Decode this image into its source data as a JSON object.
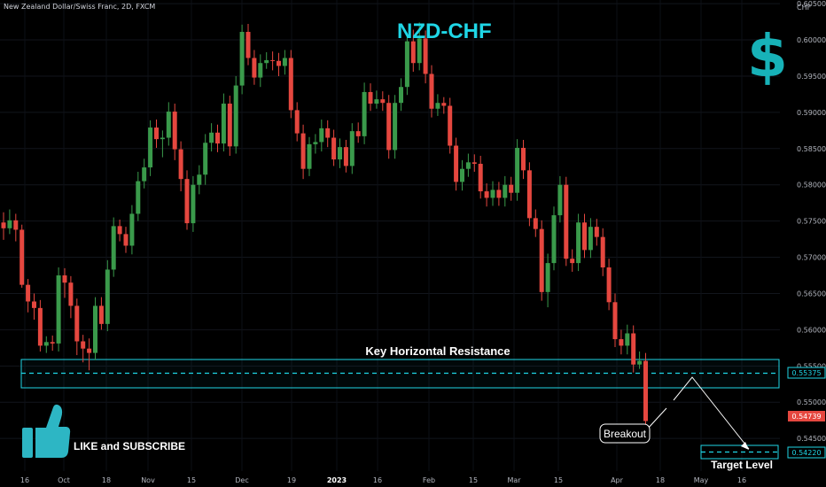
{
  "header": {
    "symbol": "New Zealand Dollar/Swiss Franc, 2D, FXCM",
    "currency_label": "CHF"
  },
  "title": "NZD-CHF",
  "cta": "LIKE and SUBSCRIBE",
  "colors": {
    "up": "#3a9a4b",
    "down": "#e5473f",
    "accent": "#1fd6e6",
    "background": "#000000",
    "white": "#ffffff"
  },
  "icons": [
    "dollar-sign-icon",
    "thumbs-up-icon"
  ],
  "annotations": {
    "resistance": "Key Horizontal Resistance",
    "breakout": "Breakout",
    "target": "Target Level"
  },
  "price_tags": {
    "resistance": "0.55375",
    "current": "0.54739",
    "target": "0.54220"
  },
  "chart_data": {
    "type": "candlestick",
    "title": "NZD-CHF",
    "ylim": [
      0.5405,
      0.6055
    ],
    "y_ticks": [
      "0.60500",
      "0.60000",
      "0.59500",
      "0.59000",
      "0.58500",
      "0.58000",
      "0.57500",
      "0.57000",
      "0.56500",
      "0.56000",
      "0.55500",
      "0.55000",
      "0.54500"
    ],
    "x_ticks": [
      "16",
      "Oct",
      "18",
      "Nov",
      "15",
      "Dec",
      "19",
      "2023",
      "16",
      "Feb",
      "15",
      "Mar",
      "15",
      "Apr",
      "18",
      "May",
      "16"
    ],
    "resistance_zone": [
      0.5514,
      0.5555
    ],
    "resistance_level": 0.55375,
    "target_level": 0.5422,
    "candles": [
      [
        0.5748,
        0.574,
        0.5762,
        0.5724
      ],
      [
        0.574,
        0.5751,
        0.5766,
        0.5732
      ],
      [
        0.5751,
        0.5738,
        0.576,
        0.5722
      ],
      [
        0.5738,
        0.5662,
        0.5745,
        0.5658
      ],
      [
        0.5662,
        0.5639,
        0.567,
        0.5624
      ],
      [
        0.5639,
        0.563,
        0.565,
        0.5614
      ],
      [
        0.563,
        0.5578,
        0.5641,
        0.557
      ],
      [
        0.5578,
        0.5583,
        0.5591,
        0.5568
      ],
      [
        0.5583,
        0.5581,
        0.5592,
        0.5571
      ],
      [
        0.5581,
        0.5675,
        0.5686,
        0.557
      ],
      [
        0.5675,
        0.5665,
        0.5685,
        0.5644
      ],
      [
        0.5665,
        0.5633,
        0.5674,
        0.5616
      ],
      [
        0.5633,
        0.5584,
        0.5643,
        0.5565
      ],
      [
        0.5584,
        0.5574,
        0.5593,
        0.5555
      ],
      [
        0.5574,
        0.5568,
        0.5588,
        0.5544
      ],
      [
        0.5568,
        0.5633,
        0.5645,
        0.5558
      ],
      [
        0.5633,
        0.5608,
        0.5645,
        0.56
      ],
      [
        0.5608,
        0.5683,
        0.5696,
        0.5598
      ],
      [
        0.5683,
        0.5743,
        0.5755,
        0.5673
      ],
      [
        0.5743,
        0.5732,
        0.5752,
        0.5722
      ],
      [
        0.5732,
        0.5716,
        0.5742,
        0.5706
      ],
      [
        0.5716,
        0.576,
        0.5772,
        0.5704
      ],
      [
        0.576,
        0.5805,
        0.5818,
        0.575
      ],
      [
        0.5805,
        0.5824,
        0.5836,
        0.5795
      ],
      [
        0.5824,
        0.5879,
        0.5889,
        0.5812
      ],
      [
        0.5879,
        0.5863,
        0.589,
        0.5851
      ],
      [
        0.5863,
        0.5865,
        0.5875,
        0.5838
      ],
      [
        0.5865,
        0.5901,
        0.5914,
        0.5854
      ],
      [
        0.5901,
        0.5849,
        0.5912,
        0.5834
      ],
      [
        0.5849,
        0.5808,
        0.586,
        0.5791
      ],
      [
        0.5808,
        0.5747,
        0.582,
        0.5738
      ],
      [
        0.5747,
        0.58,
        0.5812,
        0.5735
      ],
      [
        0.58,
        0.5814,
        0.5827,
        0.5787
      ],
      [
        0.5814,
        0.5858,
        0.587,
        0.58
      ],
      [
        0.5858,
        0.5872,
        0.5885,
        0.5846
      ],
      [
        0.5872,
        0.5857,
        0.5883,
        0.5845
      ],
      [
        0.5857,
        0.5912,
        0.5926,
        0.5846
      ],
      [
        0.5912,
        0.5853,
        0.5923,
        0.584
      ],
      [
        0.5853,
        0.5937,
        0.595,
        0.5843
      ],
      [
        0.5937,
        0.6011,
        0.6021,
        0.5925
      ],
      [
        0.6011,
        0.5975,
        0.6022,
        0.5965
      ],
      [
        0.5975,
        0.5948,
        0.5986,
        0.5938
      ],
      [
        0.5948,
        0.5968,
        0.598,
        0.5935
      ],
      [
        0.5968,
        0.5972,
        0.5983,
        0.596
      ],
      [
        0.5972,
        0.5971,
        0.5984,
        0.5958
      ],
      [
        0.5971,
        0.5964,
        0.5982,
        0.595
      ],
      [
        0.5964,
        0.5975,
        0.5986,
        0.5952
      ],
      [
        0.5975,
        0.5903,
        0.5986,
        0.5892
      ],
      [
        0.5903,
        0.5871,
        0.5914,
        0.586
      ],
      [
        0.5871,
        0.5822,
        0.5883,
        0.5808
      ],
      [
        0.5822,
        0.5856,
        0.5866,
        0.5812
      ],
      [
        0.5856,
        0.5859,
        0.587,
        0.5843
      ],
      [
        0.5859,
        0.5878,
        0.589,
        0.5846
      ],
      [
        0.5878,
        0.5865,
        0.5889,
        0.5852
      ],
      [
        0.5865,
        0.5835,
        0.5876,
        0.5826
      ],
      [
        0.5835,
        0.5852,
        0.5864,
        0.5823
      ],
      [
        0.5852,
        0.5826,
        0.5862,
        0.5817
      ],
      [
        0.5826,
        0.5874,
        0.5885,
        0.5815
      ],
      [
        0.5874,
        0.5867,
        0.5886,
        0.5858
      ],
      [
        0.5867,
        0.5928,
        0.5941,
        0.5856
      ],
      [
        0.5928,
        0.5912,
        0.594,
        0.5902
      ],
      [
        0.5912,
        0.5918,
        0.593,
        0.5905
      ],
      [
        0.5918,
        0.5913,
        0.5929,
        0.5902
      ],
      [
        0.5913,
        0.5848,
        0.5924,
        0.5836
      ],
      [
        0.5848,
        0.5913,
        0.5924,
        0.5836
      ],
      [
        0.5913,
        0.5935,
        0.5947,
        0.5902
      ],
      [
        0.5935,
        0.5998,
        0.601,
        0.5924
      ],
      [
        0.5998,
        0.5968,
        0.6014,
        0.5956
      ],
      [
        0.5968,
        0.6002,
        0.6024,
        0.5958
      ],
      [
        0.6002,
        0.5953,
        0.6013,
        0.594
      ],
      [
        0.5953,
        0.5905,
        0.5965,
        0.5893
      ],
      [
        0.5905,
        0.5913,
        0.5925,
        0.5895
      ],
      [
        0.5913,
        0.5909,
        0.5921,
        0.5898
      ],
      [
        0.5909,
        0.5854,
        0.592,
        0.5843
      ],
      [
        0.5854,
        0.5804,
        0.5865,
        0.5792
      ],
      [
        0.5804,
        0.5822,
        0.5834,
        0.5792
      ],
      [
        0.5822,
        0.5831,
        0.5843,
        0.5811
      ],
      [
        0.5831,
        0.5829,
        0.5842,
        0.5818
      ],
      [
        0.5829,
        0.5791,
        0.584,
        0.5781
      ],
      [
        0.5791,
        0.5782,
        0.5802,
        0.577
      ],
      [
        0.5782,
        0.5793,
        0.5805,
        0.5771
      ],
      [
        0.5793,
        0.5782,
        0.5804,
        0.5771
      ],
      [
        0.5782,
        0.58,
        0.5812,
        0.577
      ],
      [
        0.58,
        0.5789,
        0.5811,
        0.5778
      ],
      [
        0.5789,
        0.5851,
        0.5863,
        0.5778
      ],
      [
        0.5851,
        0.582,
        0.5862,
        0.5808
      ],
      [
        0.582,
        0.5754,
        0.5831,
        0.5743
      ],
      [
        0.5754,
        0.5739,
        0.5766,
        0.5728
      ],
      [
        0.5739,
        0.5652,
        0.5751,
        0.564
      ],
      [
        0.5652,
        0.5692,
        0.5705,
        0.5631
      ],
      [
        0.5692,
        0.5758,
        0.577,
        0.5682
      ],
      [
        0.5758,
        0.58,
        0.5812,
        0.5748
      ],
      [
        0.58,
        0.5698,
        0.5811,
        0.5688
      ],
      [
        0.5698,
        0.5692,
        0.5711,
        0.568
      ],
      [
        0.5692,
        0.5748,
        0.576,
        0.5681
      ],
      [
        0.5748,
        0.571,
        0.576,
        0.5699
      ],
      [
        0.571,
        0.5742,
        0.5754,
        0.5699
      ],
      [
        0.5742,
        0.5728,
        0.5753,
        0.5716
      ],
      [
        0.5728,
        0.5686,
        0.574,
        0.5674
      ],
      [
        0.5686,
        0.5638,
        0.5698,
        0.5627
      ],
      [
        0.5638,
        0.5587,
        0.565,
        0.5576
      ],
      [
        0.5587,
        0.5578,
        0.56,
        0.5566
      ],
      [
        0.5578,
        0.5595,
        0.5607,
        0.5566
      ],
      [
        0.5595,
        0.5552,
        0.5606,
        0.5541
      ],
      [
        0.5552,
        0.5557,
        0.557,
        0.5546
      ],
      [
        0.5557,
        0.5474,
        0.5568,
        0.5468
      ]
    ]
  }
}
